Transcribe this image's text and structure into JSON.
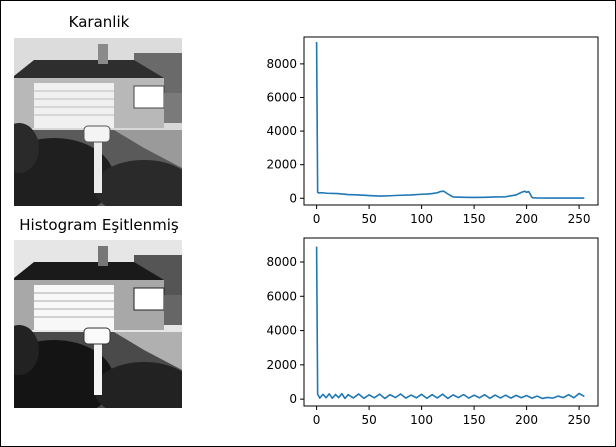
{
  "panels": [
    {
      "title": "Karanlik",
      "image_icon": "house-photo-dark"
    },
    {
      "title": "Histogram Eşitlenmiş",
      "image_icon": "house-photo-equalized"
    }
  ],
  "colors": {
    "line": "#1f77b4",
    "frame": "#000000"
  },
  "chart_data": [
    {
      "type": "line",
      "title": "",
      "xlabel": "",
      "ylabel": "",
      "xlim": [
        -12,
        268
      ],
      "ylim": [
        -400,
        9600
      ],
      "xticks": [
        0,
        50,
        100,
        150,
        200,
        250
      ],
      "yticks": [
        0,
        2000,
        4000,
        6000,
        8000
      ],
      "x": [
        0,
        1,
        2,
        5,
        10,
        20,
        30,
        40,
        50,
        60,
        70,
        80,
        90,
        100,
        105,
        110,
        115,
        118,
        121,
        124,
        127,
        130,
        140,
        150,
        160,
        170,
        180,
        190,
        195,
        198,
        200,
        202,
        204,
        205,
        206,
        210,
        220,
        230,
        240,
        250,
        255
      ],
      "series": [
        {
          "values": [
            9300,
            350,
            320,
            330,
            300,
            280,
            220,
            200,
            160,
            130,
            150,
            180,
            200,
            240,
            250,
            280,
            330,
            400,
            420,
            300,
            180,
            80,
            60,
            50,
            60,
            80,
            90,
            200,
            350,
            420,
            360,
            400,
            200,
            60,
            30,
            20,
            15,
            10,
            10,
            10,
            10
          ]
        }
      ]
    },
    {
      "type": "line",
      "title": "",
      "xlabel": "",
      "ylabel": "",
      "xlim": [
        -12,
        268
      ],
      "ylim": [
        -400,
        9400
      ],
      "xticks": [
        0,
        50,
        100,
        150,
        200,
        250
      ],
      "yticks": [
        0,
        2000,
        4000,
        6000,
        8000
      ],
      "x": [
        0,
        1,
        3,
        6,
        9,
        12,
        15,
        18,
        21,
        24,
        27,
        30,
        35,
        40,
        45,
        50,
        55,
        60,
        65,
        70,
        75,
        80,
        85,
        90,
        95,
        100,
        105,
        110,
        115,
        120,
        125,
        130,
        135,
        140,
        145,
        150,
        155,
        160,
        165,
        170,
        175,
        180,
        185,
        190,
        195,
        200,
        205,
        210,
        215,
        220,
        225,
        230,
        235,
        240,
        245,
        250,
        255
      ],
      "series": [
        {
          "values": [
            8900,
            300,
            60,
            280,
            80,
            310,
            50,
            270,
            90,
            320,
            40,
            260,
            70,
            300,
            50,
            250,
            80,
            290,
            40,
            260,
            90,
            300,
            60,
            240,
            80,
            280,
            50,
            260,
            70,
            290,
            40,
            250,
            90,
            270,
            60,
            230,
            80,
            260,
            50,
            240,
            70,
            230,
            60,
            220,
            80,
            210,
            60,
            180,
            40,
            100,
            60,
            180,
            90,
            260,
            80,
            330,
            160
          ]
        }
      ]
    }
  ]
}
